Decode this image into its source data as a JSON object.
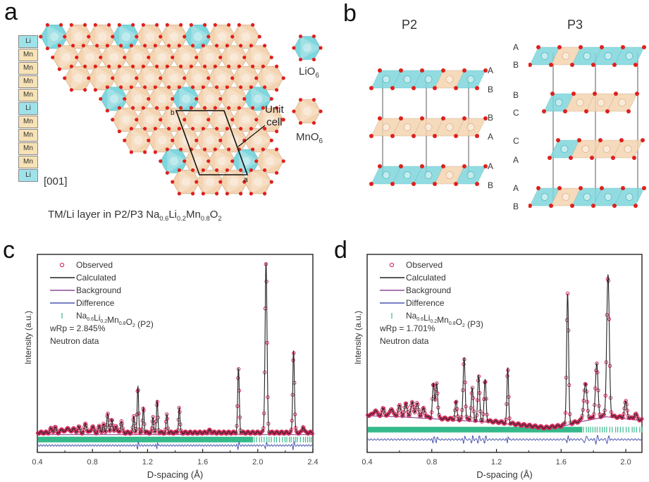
{
  "panels": {
    "a": {
      "letter": "a",
      "stack_labels": [
        "Li",
        "Mn",
        "Mn",
        "Mn",
        "Mn",
        "Li",
        "Mn",
        "Mn",
        "Mn",
        "Mn",
        "Li"
      ],
      "direction": "[001]",
      "unit_cell_label_line1": "Unit",
      "unit_cell_label_line2": "cell",
      "cell_vertex_b": "b",
      "cell_vertex_a": "a",
      "legend": [
        {
          "label": "LiO",
          "sub": "6",
          "kind": "li"
        },
        {
          "label": "MnO",
          "sub": "6",
          "kind": "mn"
        }
      ],
      "caption": {
        "prefix": "TM/Li layer in P2/P3 ",
        "formula": [
          {
            "t": "Na",
            "s": "0.6"
          },
          {
            "t": "Li",
            "s": "0.2"
          },
          {
            "t": "Mn",
            "s": "0.8"
          },
          {
            "t": "O",
            "s": "2"
          }
        ]
      }
    },
    "b": {
      "letter": "b",
      "p2": {
        "title": "P2",
        "layer_labels": [
          "A",
          "B",
          "B",
          "A",
          "A",
          "B"
        ],
        "layers": [
          {
            "pattern": [
              "li",
              "li",
              "li",
              "mn",
              "li"
            ]
          },
          {
            "pattern": [
              "mn",
              "mn",
              "mn",
              "mn",
              "mn"
            ]
          },
          {
            "pattern": [
              "li",
              "li",
              "li",
              "mn",
              "li"
            ]
          }
        ]
      },
      "p3": {
        "title": "P3",
        "layer_labels": [
          "A",
          "B",
          "B",
          "C",
          "C",
          "A",
          "A",
          "B"
        ],
        "layers": [
          {
            "pattern": [
              "li",
              "mn",
              "li",
              "li",
              "li"
            ]
          },
          {
            "pattern": [
              "li",
              "mn",
              "mn",
              "mn"
            ]
          },
          {
            "pattern": [
              "li",
              "mn",
              "mn",
              "mn"
            ]
          },
          {
            "pattern": [
              "li",
              "mn",
              "li",
              "li",
              "li"
            ]
          }
        ]
      }
    },
    "c": {
      "letter": "c"
    },
    "d": {
      "letter": "d"
    }
  },
  "colors": {
    "li": "#7fd6dc",
    "li_dark": "#5bbcc3",
    "mn": "#f3d3b0",
    "mn_dark": "#c9a888",
    "oxygen": "#e0201c",
    "observed": "#d2285a",
    "calculated": "#222222",
    "background": "#8e4a9a",
    "difference": "#4a55b0",
    "ticks": "#35b98a"
  },
  "chart_data": [
    {
      "type": "scatter",
      "panel": "c",
      "title": "",
      "xlabel": "D-spacing (Å)",
      "ylabel": "Intensity (a.u.)",
      "xlim": [
        0.4,
        2.4
      ],
      "ylim": [
        0,
        100
      ],
      "xticks": [
        "0.4",
        "0.8",
        "1.2",
        "1.6",
        "2.0",
        "2.4"
      ],
      "xtick_values": [
        0.4,
        0.8,
        1.2,
        1.6,
        2.0,
        2.4
      ],
      "grid": false,
      "legend_placement": "top-left",
      "legend": [
        {
          "label": "Observed",
          "kind": "marker"
        },
        {
          "label": "Calculated",
          "kind": "line"
        },
        {
          "label": "Background",
          "kind": "line"
        },
        {
          "label": "Difference",
          "kind": "line"
        },
        {
          "label": "Na0.6Li0.2Mn0.8O2 (P2)",
          "kind": "tick",
          "formula": [
            {
              "t": "Na",
              "s": "0.6"
            },
            {
              "t": "Li",
              "s": "0.2"
            },
            {
              "t": "Mn",
              "s": "0.8"
            },
            {
              "t": "O",
              "s": "2"
            }
          ],
          "suffix": " (P2)"
        }
      ],
      "annotations": [
        "wRp = 2.845%",
        "Neutron data"
      ],
      "baseline": 10,
      "background_level": 9,
      "tick_row_level": 6.5,
      "difference_level": 3.5,
      "peaks": [
        {
          "x": 0.5,
          "y": 12,
          "w": 0.008
        },
        {
          "x": 0.53,
          "y": 12.5,
          "w": 0.008
        },
        {
          "x": 0.58,
          "y": 12,
          "w": 0.008
        },
        {
          "x": 0.62,
          "y": 13,
          "w": 0.008
        },
        {
          "x": 0.66,
          "y": 12.5,
          "w": 0.008
        },
        {
          "x": 0.7,
          "y": 13,
          "w": 0.008
        },
        {
          "x": 0.75,
          "y": 14.5,
          "w": 0.008
        },
        {
          "x": 0.8,
          "y": 13.5,
          "w": 0.008
        },
        {
          "x": 0.85,
          "y": 13,
          "w": 0.008
        },
        {
          "x": 0.88,
          "y": 14,
          "w": 0.006
        },
        {
          "x": 0.91,
          "y": 19.5,
          "w": 0.006
        },
        {
          "x": 0.94,
          "y": 17,
          "w": 0.006
        },
        {
          "x": 0.97,
          "y": 14,
          "w": 0.006
        },
        {
          "x": 1.01,
          "y": 16,
          "w": 0.006
        },
        {
          "x": 1.1,
          "y": 18.5,
          "w": 0.005
        },
        {
          "x": 1.13,
          "y": 33,
          "w": 0.005
        },
        {
          "x": 1.17,
          "y": 23,
          "w": 0.005
        },
        {
          "x": 1.24,
          "y": 18,
          "w": 0.005
        },
        {
          "x": 1.27,
          "y": 26,
          "w": 0.005
        },
        {
          "x": 1.34,
          "y": 19,
          "w": 0.005
        },
        {
          "x": 1.43,
          "y": 23,
          "w": 0.005
        },
        {
          "x": 1.65,
          "y": 11,
          "w": 0.01
        },
        {
          "x": 1.86,
          "y": 42,
          "w": 0.006
        },
        {
          "x": 2.06,
          "y": 96,
          "w": 0.007
        },
        {
          "x": 2.26,
          "y": 52,
          "w": 0.006
        },
        {
          "x": 2.33,
          "y": 13.5,
          "w": 0.006
        }
      ]
    },
    {
      "type": "scatter",
      "panel": "d",
      "title": "",
      "xlabel": "D-spacing (Å)",
      "ylabel": "Intensity (a.u.)",
      "xlim": [
        0.4,
        2.1
      ],
      "ylim": [
        0,
        100
      ],
      "xticks": [
        "0.4",
        "0.8",
        "1.2",
        "1.6",
        "2.0"
      ],
      "xtick_values": [
        0.4,
        0.8,
        1.2,
        1.6,
        2.0
      ],
      "grid": false,
      "legend_placement": "top-left",
      "legend": [
        {
          "label": "Observed",
          "kind": "marker"
        },
        {
          "label": "Calculated",
          "kind": "line"
        },
        {
          "label": "Background",
          "kind": "line"
        },
        {
          "label": "Difference",
          "kind": "line"
        },
        {
          "label": "Na0.6Li0.2Mn0.8O2 (P3)",
          "kind": "tick",
          "formula": [
            {
              "t": "Na",
              "s": "0.6"
            },
            {
              "t": "Li",
              "s": "0.2"
            },
            {
              "t": "Mn",
              "s": "0.8"
            },
            {
              "t": "O",
              "s": "2"
            }
          ],
          "suffix": " (P3)"
        }
      ],
      "annotations": [
        "wRp = 1.701%",
        "Neutron data"
      ],
      "baseline": 17,
      "background_points": [
        [
          0.4,
          18.5
        ],
        [
          0.6,
          18
        ],
        [
          0.8,
          17
        ],
        [
          1.0,
          16
        ],
        [
          1.2,
          15
        ],
        [
          1.4,
          13
        ],
        [
          1.5,
          12
        ],
        [
          1.6,
          13
        ],
        [
          1.75,
          16
        ],
        [
          1.88,
          18
        ],
        [
          2.0,
          17
        ],
        [
          2.1,
          16
        ]
      ],
      "tick_row_level": 11.5,
      "difference_level": 6.5,
      "peaks": [
        {
          "x": 0.45,
          "y": 21,
          "w": 0.008
        },
        {
          "x": 0.5,
          "y": 21.5,
          "w": 0.008
        },
        {
          "x": 0.55,
          "y": 22,
          "w": 0.008
        },
        {
          "x": 0.6,
          "y": 23,
          "w": 0.008
        },
        {
          "x": 0.64,
          "y": 24,
          "w": 0.008
        },
        {
          "x": 0.68,
          "y": 25,
          "w": 0.008
        },
        {
          "x": 0.71,
          "y": 24,
          "w": 0.008
        },
        {
          "x": 0.75,
          "y": 22,
          "w": 0.008
        },
        {
          "x": 0.81,
          "y": 34,
          "w": 0.006
        },
        {
          "x": 0.83,
          "y": 35,
          "w": 0.006
        },
        {
          "x": 0.95,
          "y": 25,
          "w": 0.006
        },
        {
          "x": 1.0,
          "y": 48,
          "w": 0.006
        },
        {
          "x": 1.05,
          "y": 32,
          "w": 0.006
        },
        {
          "x": 1.09,
          "y": 38,
          "w": 0.006
        },
        {
          "x": 1.13,
          "y": 36,
          "w": 0.006
        },
        {
          "x": 1.27,
          "y": 42,
          "w": 0.005
        },
        {
          "x": 1.64,
          "y": 80,
          "w": 0.006
        },
        {
          "x": 1.75,
          "y": 34,
          "w": 0.01
        },
        {
          "x": 1.82,
          "y": 44,
          "w": 0.008
        },
        {
          "x": 1.89,
          "y": 89,
          "w": 0.008
        },
        {
          "x": 2.0,
          "y": 25,
          "w": 0.008
        },
        {
          "x": 2.06,
          "y": 19,
          "w": 0.008
        }
      ]
    }
  ]
}
